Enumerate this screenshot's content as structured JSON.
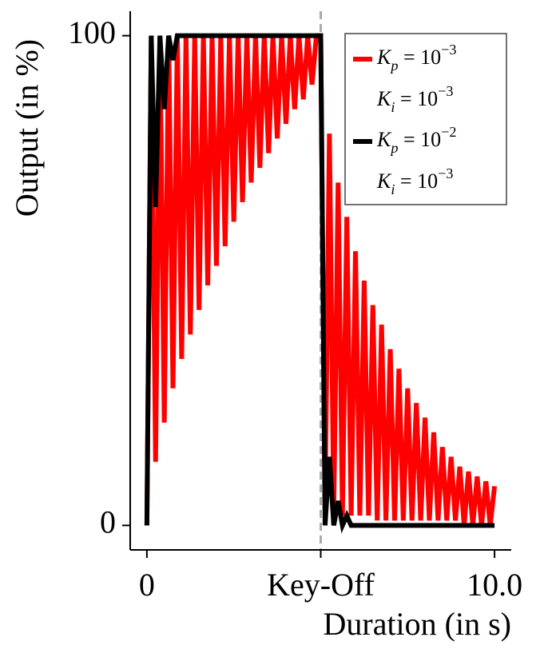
{
  "chart_data": {
    "type": "line",
    "xlabel": "Duration (in s)",
    "ylabel": "Output (in %)",
    "x": [
      0,
      0.125,
      0.25,
      0.375,
      0.5,
      0.625,
      0.75,
      0.875,
      1,
      1.125,
      1.25,
      1.375,
      1.5,
      1.625,
      1.75,
      1.875,
      2,
      2.125,
      2.25,
      2.375,
      2.5,
      2.625,
      2.75,
      2.875,
      3,
      3.125,
      3.25,
      3.375,
      3.5,
      3.625,
      3.75,
      3.875,
      4,
      4.125,
      4.25,
      4.375,
      4.5,
      4.625,
      4.75,
      4.875,
      5,
      5.125,
      5.25,
      5.375,
      5.5,
      5.625,
      5.75,
      5.875,
      6,
      6.125,
      6.25,
      6.375,
      6.5,
      6.625,
      6.75,
      6.875,
      7,
      7.125,
      7.25,
      7.375,
      7.5,
      7.625,
      7.75,
      7.875,
      8,
      8.125,
      8.25,
      8.375,
      8.5,
      8.625,
      8.75,
      8.875,
      9,
      9.125,
      9.25,
      9.375,
      9.5,
      9.625,
      9.75,
      9.875,
      10
    ],
    "series": [
      {
        "name": "K_p = 10^{−3}\nK_i = 10^{−3}",
        "color": "#ff0000",
        "values": [
          0,
          100,
          13,
          100,
          21,
          100,
          28,
          100,
          34,
          100,
          39,
          100,
          44,
          100,
          49,
          100,
          53,
          100,
          57,
          100,
          62,
          100,
          66,
          100,
          70,
          100,
          73,
          100,
          76,
          100,
          79,
          100,
          82,
          100,
          85,
          100,
          87,
          100,
          90,
          100,
          100,
          3,
          80,
          3,
          70,
          2,
          63,
          2,
          56,
          2,
          50,
          2,
          45,
          1,
          41,
          1,
          36,
          1,
          32,
          1,
          28,
          1,
          25,
          1,
          22,
          1,
          19,
          1,
          16,
          1,
          14,
          1,
          12,
          0,
          11,
          0,
          10,
          0,
          9,
          0,
          8
        ]
      },
      {
        "name": "K_p = 10^{−2}\nK_i = 10^{−3}",
        "color": "#000000",
        "values": [
          0,
          100,
          65,
          100,
          85,
          100,
          95,
          100,
          100,
          100,
          100,
          100,
          100,
          100,
          100,
          100,
          100,
          100,
          100,
          100,
          100,
          100,
          100,
          100,
          100,
          100,
          100,
          100,
          100,
          100,
          100,
          100,
          100,
          100,
          100,
          100,
          100,
          100,
          100,
          100,
          100,
          0,
          14,
          0,
          5,
          0,
          2,
          0,
          0,
          0,
          0,
          0,
          0,
          0,
          0,
          0,
          0,
          0,
          0,
          0,
          0,
          0,
          0,
          0,
          0,
          0,
          0,
          0,
          0,
          0,
          0,
          0,
          0,
          0,
          0,
          0,
          0,
          0,
          0,
          0,
          0
        ]
      }
    ],
    "xlim": [
      -0.48,
      10.48
    ],
    "ylim": [
      -5,
      105
    ],
    "xticks": [
      0,
      {
        "value": 5,
        "label": "Key-Off"
      },
      {
        "value": 10,
        "label": "10.0"
      }
    ],
    "yticks": [
      0,
      100
    ],
    "vline": {
      "x": 5,
      "color": "#aaaaaa"
    },
    "grid": false,
    "legend": "upper right"
  }
}
